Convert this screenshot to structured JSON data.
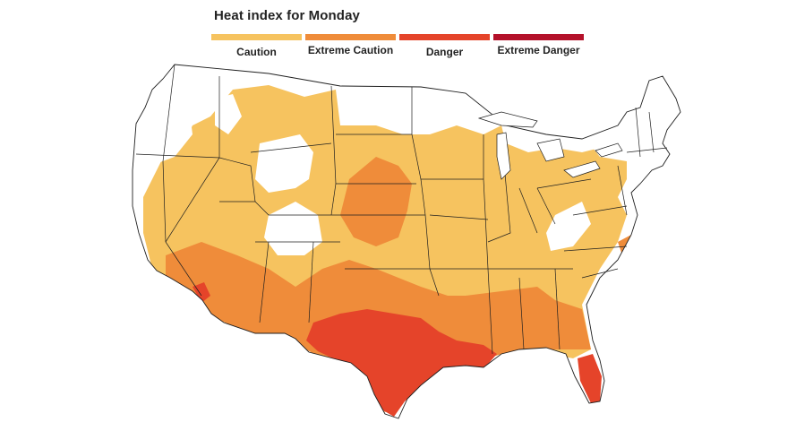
{
  "title": "Heat index for Monday",
  "legend": [
    {
      "label": "Caution",
      "color": "#f6c35f"
    },
    {
      "label": "Extreme Caution",
      "color": "#ef8c3a"
    },
    {
      "label": "Danger",
      "color": "#e5442a"
    },
    {
      "label": "Extreme Danger",
      "color": "#b4112a"
    }
  ],
  "colors": {
    "background": "#ffffff",
    "no_data": "#ffffff",
    "state_border": "#1f1f1f"
  }
}
